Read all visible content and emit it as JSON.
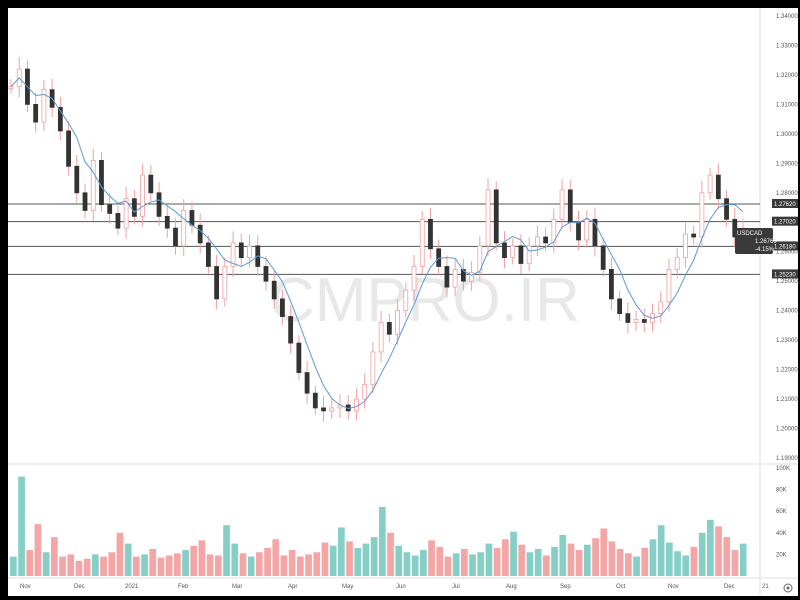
{
  "watermark": "CMPRO.IR",
  "symbol_label": "USDCAD",
  "price_box": {
    "value": "1.26769",
    "change": "-4.15%"
  },
  "level_labels": [
    "1.27620",
    "1.27020",
    "1.26180",
    "1.25230"
  ],
  "price_ticks": [
    "1.34000",
    "1.33000",
    "1.32000",
    "1.31000",
    "1.30000",
    "1.29000",
    "1.28000",
    "1.27000",
    "1.26000",
    "1.25000",
    "1.24000",
    "1.23000",
    "1.22000",
    "1.21000",
    "1.20000",
    "1.19000"
  ],
  "volume_ticks": [
    "100K",
    "80K",
    "60K",
    "40K",
    "20K"
  ],
  "time_ticks": [
    "Nov",
    "Dec",
    "2021",
    "Feb",
    "Mar",
    "Apr",
    "May",
    "Jun",
    "Jul",
    "Aug",
    "Sep",
    "Oct",
    "Nov",
    "Dec",
    "21"
  ],
  "colors": {
    "up_candle": "#ffffff",
    "down_candle": "#333333",
    "wick": "#f0a0a0",
    "ma_line": "#5b9bd5",
    "level_line": "#555555",
    "vol_up": "#86cfc6",
    "vol_down": "#f4a6a6",
    "label_bg": "#3a3a3a"
  },
  "chart_data": {
    "type": "candlestick",
    "title": "",
    "symbol": "USDCAD",
    "xlabel": "",
    "ylabel": "",
    "ylim": [
      1.19,
      1.34
    ],
    "volume_ylim": [
      0,
      100000
    ],
    "grid": false,
    "horizontal_levels": [
      1.2762,
      1.2702,
      1.2618,
      1.2523
    ],
    "last_price": 1.26769,
    "last_change_pct": -4.15,
    "price_path": [
      {
        "x": 0,
        "y": 1.316
      },
      {
        "x": 0.5,
        "y": 1.333
      },
      {
        "x": 1,
        "y": 1.322
      },
      {
        "x": 2,
        "y": 1.31
      },
      {
        "x": 3,
        "y": 1.304
      },
      {
        "x": 4,
        "y": 1.315
      },
      {
        "x": 5,
        "y": 1.309
      },
      {
        "x": 6,
        "y": 1.301
      },
      {
        "x": 7,
        "y": 1.289
      },
      {
        "x": 8,
        "y": 1.28
      },
      {
        "x": 9,
        "y": 1.274
      },
      {
        "x": 10,
        "y": 1.291
      },
      {
        "x": 11,
        "y": 1.276
      },
      {
        "x": 12,
        "y": 1.273
      },
      {
        "x": 13,
        "y": 1.268
      },
      {
        "x": 14,
        "y": 1.278
      },
      {
        "x": 15,
        "y": 1.272
      },
      {
        "x": 16,
        "y": 1.286
      },
      {
        "x": 17,
        "y": 1.28
      },
      {
        "x": 18,
        "y": 1.272
      },
      {
        "x": 19,
        "y": 1.268
      },
      {
        "x": 20,
        "y": 1.262
      },
      {
        "x": 21,
        "y": 1.274
      },
      {
        "x": 22,
        "y": 1.269
      },
      {
        "x": 23,
        "y": 1.263
      },
      {
        "x": 24,
        "y": 1.255
      },
      {
        "x": 25,
        "y": 1.244
      },
      {
        "x": 26,
        "y": 1.255
      },
      {
        "x": 27,
        "y": 1.263
      },
      {
        "x": 28,
        "y": 1.258
      },
      {
        "x": 29,
        "y": 1.262
      },
      {
        "x": 30,
        "y": 1.255
      },
      {
        "x": 31,
        "y": 1.25
      },
      {
        "x": 32,
        "y": 1.244
      },
      {
        "x": 33,
        "y": 1.238
      },
      {
        "x": 34,
        "y": 1.229
      },
      {
        "x": 35,
        "y": 1.219
      },
      {
        "x": 36,
        "y": 1.212
      },
      {
        "x": 37,
        "y": 1.207
      },
      {
        "x": 38,
        "y": 1.206
      },
      {
        "x": 39,
        "y": 1.207
      },
      {
        "x": 40,
        "y": 1.208
      },
      {
        "x": 41,
        "y": 1.206
      },
      {
        "x": 42,
        "y": 1.21
      },
      {
        "x": 43,
        "y": 1.215
      },
      {
        "x": 44,
        "y": 1.226
      },
      {
        "x": 45,
        "y": 1.236
      },
      {
        "x": 46,
        "y": 1.232
      },
      {
        "x": 47,
        "y": 1.24
      },
      {
        "x": 48,
        "y": 1.247
      },
      {
        "x": 49,
        "y": 1.255
      },
      {
        "x": 50,
        "y": 1.271
      },
      {
        "x": 51,
        "y": 1.261
      },
      {
        "x": 52,
        "y": 1.255
      },
      {
        "x": 53,
        "y": 1.248
      },
      {
        "x": 54,
        "y": 1.254
      },
      {
        "x": 55,
        "y": 1.25
      },
      {
        "x": 56,
        "y": 1.253
      },
      {
        "x": 57,
        "y": 1.262
      },
      {
        "x": 58,
        "y": 1.281
      },
      {
        "x": 59,
        "y": 1.263
      },
      {
        "x": 60,
        "y": 1.258
      },
      {
        "x": 61,
        "y": 1.262
      },
      {
        "x": 62,
        "y": 1.256
      },
      {
        "x": 63,
        "y": 1.262
      },
      {
        "x": 64,
        "y": 1.265
      },
      {
        "x": 65,
        "y": 1.263
      },
      {
        "x": 66,
        "y": 1.271
      },
      {
        "x": 67,
        "y": 1.281
      },
      {
        "x": 68,
        "y": 1.27
      },
      {
        "x": 69,
        "y": 1.264
      },
      {
        "x": 70,
        "y": 1.271
      },
      {
        "x": 71,
        "y": 1.262
      },
      {
        "x": 72,
        "y": 1.254
      },
      {
        "x": 73,
        "y": 1.244
      },
      {
        "x": 74,
        "y": 1.239
      },
      {
        "x": 75,
        "y": 1.236
      },
      {
        "x": 76,
        "y": 1.237
      },
      {
        "x": 77,
        "y": 1.236
      },
      {
        "x": 78,
        "y": 1.239
      },
      {
        "x": 79,
        "y": 1.243
      },
      {
        "x": 80,
        "y": 1.254
      },
      {
        "x": 81,
        "y": 1.258
      },
      {
        "x": 82,
        "y": 1.266
      },
      {
        "x": 83,
        "y": 1.265
      },
      {
        "x": 84,
        "y": 1.28
      },
      {
        "x": 85,
        "y": 1.286
      },
      {
        "x": 86,
        "y": 1.278
      },
      {
        "x": 87,
        "y": 1.271
      },
      {
        "x": 88,
        "y": 1.265
      },
      {
        "x": 89,
        "y": 1.268
      }
    ],
    "volumes": [
      18000,
      92000,
      24000,
      48000,
      22000,
      36000,
      18000,
      20000,
      14000,
      16000,
      20000,
      18000,
      22000,
      40000,
      30000,
      18000,
      20000,
      25000,
      17000,
      19000,
      21000,
      24000,
      28000,
      33000,
      20000,
      19000,
      47000,
      30000,
      21000,
      18000,
      22000,
      26000,
      34000,
      19000,
      24000,
      18000,
      20000,
      22000,
      31000,
      28000,
      45000,
      32000,
      26000,
      30000,
      36000,
      64000,
      40000,
      28000,
      22000,
      19000,
      24000,
      33000,
      27000,
      18000,
      21000,
      25000,
      20000,
      22000,
      30000,
      26000,
      34000,
      41000,
      29000,
      22000,
      25000,
      19000,
      27000,
      38000,
      30000,
      24000,
      29000,
      35000,
      44000,
      32000,
      25000,
      21000,
      18000,
      26000,
      34000,
      47000,
      31000,
      23000,
      19000,
      27000,
      40000,
      52000,
      46000,
      36000,
      24000,
      30000
    ]
  }
}
